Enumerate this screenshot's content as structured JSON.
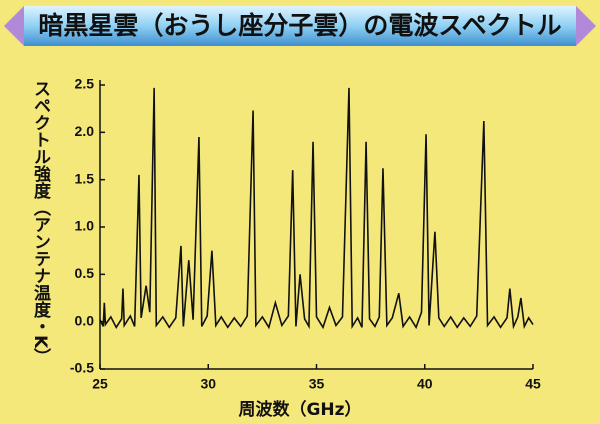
{
  "chart_data": {
    "type": "line",
    "title": "暗黒星雲（おうし座分子雲）の電波スペクトル",
    "x_label": "周波数（GHz）",
    "y_label": "スペクトル強度（アンテナ温度・K）",
    "color": "#111111",
    "xlim": [
      25,
      45
    ],
    "xticks": [
      25,
      30,
      35,
      40,
      45
    ],
    "ylim": [
      -0.5,
      2.5
    ],
    "yticks": [
      -0.5,
      {
        "value": 0,
        "label": "0.0"
      },
      0.5,
      {
        "value": 1,
        "label": "1.0"
      },
      1.5,
      {
        "value": 2,
        "label": "2.0"
      },
      2.5
    ],
    "x": [
      25.0,
      25.15,
      25.2,
      25.25,
      25.5,
      25.75,
      26.0,
      26.06,
      26.12,
      26.4,
      26.6,
      26.8,
      26.9,
      27.13,
      27.3,
      27.5,
      27.6,
      27.9,
      28.2,
      28.5,
      28.74,
      28.85,
      29.1,
      29.3,
      29.57,
      29.7,
      29.95,
      30.17,
      30.35,
      30.6,
      30.9,
      31.2,
      31.5,
      31.8,
      32.07,
      32.2,
      32.5,
      32.8,
      33.1,
      33.4,
      33.7,
      33.9,
      34.05,
      34.24,
      34.45,
      34.65,
      34.84,
      35.0,
      35.3,
      35.6,
      35.9,
      36.2,
      36.5,
      36.65,
      36.9,
      37.1,
      37.29,
      37.45,
      37.7,
      37.9,
      38.07,
      38.25,
      38.5,
      38.8,
      39.0,
      39.3,
      39.6,
      39.85,
      40.06,
      40.2,
      40.47,
      40.65,
      40.9,
      41.2,
      41.5,
      41.8,
      42.1,
      42.4,
      42.73,
      42.9,
      43.2,
      43.5,
      43.8,
      43.93,
      44.1,
      44.3,
      44.44,
      44.6,
      44.8,
      45.0
    ],
    "values": [
      0.02,
      -0.05,
      0.2,
      -0.03,
      0.05,
      -0.06,
      0.03,
      0.35,
      -0.04,
      0.06,
      -0.05,
      1.55,
      0.04,
      0.38,
      0.1,
      2.47,
      -0.04,
      0.05,
      -0.06,
      0.04,
      0.8,
      -0.05,
      0.65,
      0.02,
      1.95,
      -0.05,
      0.06,
      0.75,
      -0.04,
      0.05,
      -0.06,
      0.04,
      -0.05,
      0.06,
      2.23,
      -0.04,
      0.05,
      -0.06,
      0.2,
      -0.04,
      0.06,
      1.6,
      -0.05,
      0.5,
      0.03,
      -0.05,
      1.9,
      0.05,
      -0.06,
      0.15,
      -0.04,
      0.05,
      2.47,
      -0.05,
      0.04,
      -0.06,
      1.9,
      0.03,
      -0.05,
      0.05,
      1.62,
      -0.04,
      0.04,
      0.3,
      -0.05,
      0.05,
      -0.06,
      0.1,
      1.98,
      -0.04,
      0.95,
      0.04,
      -0.05,
      0.05,
      -0.06,
      0.04,
      -0.05,
      0.06,
      2.12,
      -0.04,
      0.05,
      -0.06,
      0.04,
      0.35,
      -0.05,
      0.05,
      0.25,
      -0.05,
      0.04,
      -0.03
    ]
  }
}
